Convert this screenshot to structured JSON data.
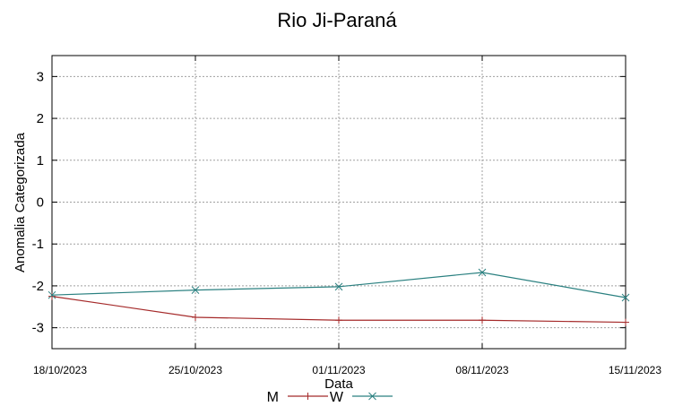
{
  "chart_data": {
    "type": "line",
    "title": "Rio Ji-Paraná",
    "xlabel": "Data",
    "ylabel": "Anomalia Categorizada",
    "categories": [
      "18/10/2023",
      "25/10/2023",
      "01/11/2023",
      "08/11/2023",
      "15/11/2023"
    ],
    "yticks": [
      "3",
      "2",
      "1",
      "0",
      "-1",
      "-2",
      "-3"
    ],
    "ytick_values": [
      3,
      2,
      1,
      0,
      -1,
      -2,
      -3
    ],
    "ylim": [
      -3.5,
      3.5
    ],
    "grid": true,
    "legend_position": "bottom",
    "series": [
      {
        "name": "M",
        "color": "#a52a2a",
        "marker": "plus",
        "values": [
          -2.25,
          -2.75,
          -2.82,
          -2.82,
          -2.87
        ]
      },
      {
        "name": "W",
        "color": "#2a8080",
        "marker": "cross",
        "values": [
          -2.22,
          -2.1,
          -2.02,
          -1.68,
          -2.28
        ]
      }
    ]
  }
}
